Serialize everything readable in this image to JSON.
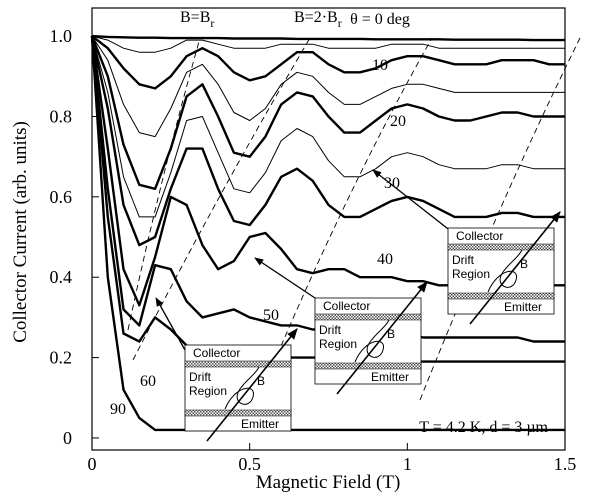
{
  "chart_data": {
    "type": "line",
    "xlabel": "Magnetic Field (T)",
    "ylabel": "Collector Current (arb. units)",
    "xlim": [
      0,
      1.5
    ],
    "ylim": [
      -0.03,
      1.07
    ],
    "xticks": [
      0,
      0.5,
      1,
      1.5
    ],
    "yticks": [
      0,
      0.2,
      0.4,
      0.6,
      0.8,
      {
        "value": 1,
        "label": "1.0"
      }
    ],
    "x": [
      0,
      0.05,
      0.1,
      0.15,
      0.2,
      0.25,
      0.3,
      0.35,
      0.4,
      0.45,
      0.5,
      0.55,
      0.6,
      0.65,
      0.7,
      0.75,
      0.8,
      0.85,
      0.9,
      0.95,
      1.0,
      1.05,
      1.1,
      1.15,
      1.2,
      1.25,
      1.3,
      1.35,
      1.4,
      1.45,
      1.5
    ],
    "series": [
      {
        "name": "θ = 0 deg",
        "color": "#000000",
        "line_width": 2.4,
        "values": [
          1,
          0.998,
          0.997,
          0.996,
          0.996,
          0.995,
          0.995,
          0.995,
          0.995,
          0.994,
          0.994,
          0.994,
          0.994,
          0.993,
          0.993,
          0.993,
          0.993,
          0.993,
          0.992,
          0.992,
          0.992,
          0.992,
          0.992,
          0.991,
          0.991,
          0.991,
          0.991,
          0.991,
          0.99,
          0.99,
          0.99
        ]
      },
      {
        "color": "#000000",
        "line_width": 1,
        "values": [
          1,
          0.99,
          0.97,
          0.96,
          0.96,
          0.97,
          0.99,
          0.99,
          0.98,
          0.97,
          0.97,
          0.97,
          0.98,
          0.98,
          0.98,
          0.97,
          0.97,
          0.97,
          0.97,
          0.98,
          0.98,
          0.98,
          0.97,
          0.97,
          0.97,
          0.97,
          0.97,
          0.97,
          0.97,
          0.97,
          0.97
        ]
      },
      {
        "name": "10",
        "color": "#000000",
        "line_width": 2.4,
        "values": [
          1,
          0.97,
          0.92,
          0.88,
          0.87,
          0.9,
          0.95,
          0.97,
          0.95,
          0.91,
          0.89,
          0.9,
          0.93,
          0.96,
          0.96,
          0.93,
          0.91,
          0.91,
          0.92,
          0.94,
          0.95,
          0.95,
          0.94,
          0.93,
          0.93,
          0.93,
          0.94,
          0.94,
          0.94,
          0.93,
          0.93
        ]
      },
      {
        "color": "#000000",
        "line_width": 1,
        "values": [
          1,
          0.94,
          0.83,
          0.76,
          0.75,
          0.82,
          0.91,
          0.93,
          0.88,
          0.81,
          0.79,
          0.82,
          0.88,
          0.91,
          0.9,
          0.86,
          0.83,
          0.83,
          0.85,
          0.87,
          0.88,
          0.88,
          0.87,
          0.86,
          0.86,
          0.86,
          0.86,
          0.86,
          0.86,
          0.86,
          0.86
        ]
      },
      {
        "name": "20",
        "color": "#000000",
        "line_width": 2.4,
        "values": [
          1,
          0.9,
          0.73,
          0.63,
          0.62,
          0.72,
          0.85,
          0.88,
          0.8,
          0.71,
          0.7,
          0.75,
          0.83,
          0.86,
          0.85,
          0.8,
          0.76,
          0.76,
          0.79,
          0.82,
          0.83,
          0.82,
          0.8,
          0.79,
          0.79,
          0.8,
          0.81,
          0.81,
          0.8,
          0.8,
          0.8
        ]
      },
      {
        "color": "#000000",
        "line_width": 1,
        "values": [
          1,
          0.86,
          0.65,
          0.55,
          0.55,
          0.66,
          0.79,
          0.8,
          0.71,
          0.62,
          0.61,
          0.66,
          0.74,
          0.77,
          0.75,
          0.69,
          0.65,
          0.65,
          0.67,
          0.7,
          0.71,
          0.7,
          0.68,
          0.67,
          0.67,
          0.67,
          0.68,
          0.68,
          0.67,
          0.67,
          0.67
        ]
      },
      {
        "name": "30",
        "color": "#000000",
        "line_width": 2.4,
        "values": [
          1,
          0.82,
          0.58,
          0.48,
          0.5,
          0.62,
          0.72,
          0.72,
          0.62,
          0.54,
          0.53,
          0.58,
          0.65,
          0.67,
          0.64,
          0.58,
          0.55,
          0.55,
          0.57,
          0.59,
          0.6,
          0.59,
          0.57,
          0.55,
          0.55,
          0.55,
          0.56,
          0.56,
          0.55,
          0.55,
          0.55
        ]
      },
      {
        "name": "40",
        "color": "#000000",
        "line_width": 2.4,
        "values": [
          1,
          0.72,
          0.42,
          0.33,
          0.45,
          0.6,
          0.58,
          0.48,
          0.42,
          0.44,
          0.5,
          0.51,
          0.47,
          0.42,
          0.41,
          0.42,
          0.42,
          0.4,
          0.4,
          0.4,
          0.39,
          0.39,
          0.38,
          0.38,
          0.38,
          0.38,
          0.38,
          0.38,
          0.38,
          0.38,
          0.38
        ]
      },
      {
        "name": "50",
        "color": "#000000",
        "line_width": 2.4,
        "values": [
          1,
          0.62,
          0.32,
          0.28,
          0.43,
          0.42,
          0.34,
          0.3,
          0.31,
          0.32,
          0.3,
          0.29,
          0.28,
          0.28,
          0.27,
          0.27,
          0.27,
          0.26,
          0.26,
          0.26,
          0.26,
          0.25,
          0.25,
          0.25,
          0.25,
          0.25,
          0.25,
          0.25,
          0.24,
          0.24,
          0.24
        ]
      },
      {
        "name": "60",
        "color": "#000000",
        "line_width": 2.4,
        "values": [
          1,
          0.55,
          0.26,
          0.24,
          0.3,
          0.27,
          0.23,
          0.22,
          0.22,
          0.21,
          0.21,
          0.2,
          0.2,
          0.2,
          0.2,
          0.2,
          0.2,
          0.2,
          0.2,
          0.19,
          0.19,
          0.19,
          0.19,
          0.19,
          0.19,
          0.19,
          0.19,
          0.19,
          0.19,
          0.19,
          0.19
        ]
      },
      {
        "name": "90",
        "color": "#000000",
        "line_width": 2.4,
        "values": [
          1,
          0.4,
          0.12,
          0.05,
          0.02,
          0.02,
          0.02,
          0.02,
          0.02,
          0.02,
          0.02,
          0.02,
          0.02,
          0.02,
          0.02,
          0.02,
          0.02,
          0.02,
          0.02,
          0.02,
          0.02,
          0.02,
          0.02,
          0.02,
          0.02,
          0.02,
          0.02,
          0.02,
          0.02,
          0.02,
          0.02
        ]
      }
    ],
    "annotations": [
      {
        "text": "B=B",
        "sub": "r"
      },
      {
        "text": "B=2·B",
        "sub": "r"
      },
      {
        "text": "T = 4.2 K, d = 3 µm"
      }
    ],
    "inset_labels": {
      "collector": "Collector",
      "drift": "Drift",
      "region": "Region",
      "emitter": "Emitter",
      "field": "B"
    }
  }
}
